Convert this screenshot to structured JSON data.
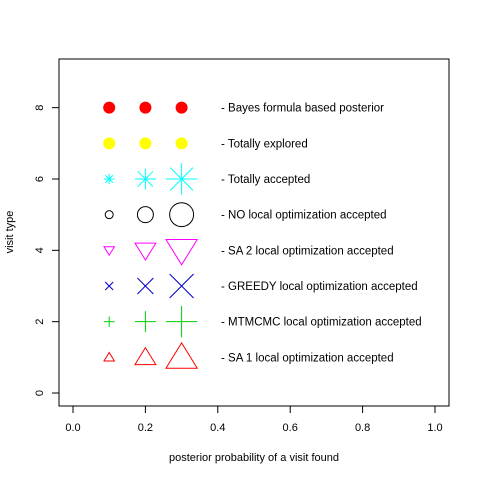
{
  "chart_data": {
    "type": "scatter",
    "title": "",
    "xlabel": "posterior probability of a visit found",
    "ylabel": "visit type",
    "xlim": [
      0,
      1
    ],
    "ylim": [
      0,
      9
    ],
    "xticks": [
      "0.0",
      "0.2",
      "0.4",
      "0.6",
      "0.8",
      "1.0"
    ],
    "yticks": [
      "0",
      "2",
      "4",
      "6",
      "8"
    ],
    "grid": false,
    "legend_placement": "inside-right",
    "series": [
      {
        "label": "- Bayes formula based posterior",
        "symbol": "filled-circle",
        "color": "#ff0000",
        "y": 8,
        "points": [
          {
            "x": 0.1,
            "size": 1
          },
          {
            "x": 0.2,
            "size": 1
          },
          {
            "x": 0.3,
            "size": 1
          }
        ]
      },
      {
        "label": "- Totally explored",
        "symbol": "filled-circle",
        "color": "#ffff00",
        "y": 7,
        "points": [
          {
            "x": 0.1,
            "size": 1
          },
          {
            "x": 0.2,
            "size": 1
          },
          {
            "x": 0.3,
            "size": 1
          }
        ]
      },
      {
        "label": "- Totally accepted",
        "symbol": "asterisk",
        "color": "#00ffff",
        "y": 6,
        "points": [
          {
            "x": 0.1,
            "size": 1
          },
          {
            "x": 0.2,
            "size": 2
          },
          {
            "x": 0.3,
            "size": 3
          }
        ]
      },
      {
        "label": "- NO local optimization accepted",
        "symbol": "circle",
        "color": "#000000",
        "y": 5,
        "points": [
          {
            "x": 0.1,
            "size": 1
          },
          {
            "x": 0.2,
            "size": 2
          },
          {
            "x": 0.3,
            "size": 3
          }
        ]
      },
      {
        "label": "- SA 2 local optimization accepted",
        "symbol": "triangle-down",
        "color": "#ff00ff",
        "y": 4,
        "points": [
          {
            "x": 0.1,
            "size": 1
          },
          {
            "x": 0.2,
            "size": 2
          },
          {
            "x": 0.3,
            "size": 3
          }
        ]
      },
      {
        "label": "- GREEDY local optimization accepted",
        "symbol": "cross",
        "color": "#0000cd",
        "y": 3,
        "points": [
          {
            "x": 0.1,
            "size": 1
          },
          {
            "x": 0.2,
            "size": 2
          },
          {
            "x": 0.3,
            "size": 3
          }
        ]
      },
      {
        "label": "- MTMCMC local optimization accepted",
        "symbol": "plus",
        "color": "#00cd00",
        "y": 2,
        "points": [
          {
            "x": 0.1,
            "size": 1
          },
          {
            "x": 0.2,
            "size": 2
          },
          {
            "x": 0.3,
            "size": 3
          }
        ]
      },
      {
        "label": "- SA 1 local optimization accepted",
        "symbol": "triangle-up",
        "color": "#ff0000",
        "y": 1,
        "points": [
          {
            "x": 0.1,
            "size": 1
          },
          {
            "x": 0.2,
            "size": 2
          },
          {
            "x": 0.3,
            "size": 3
          }
        ]
      }
    ]
  }
}
